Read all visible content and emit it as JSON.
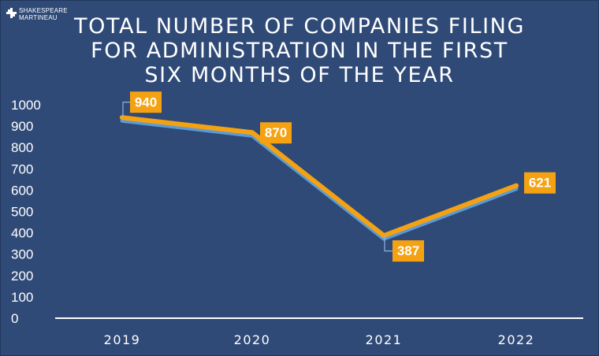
{
  "brand": {
    "line1": "SHAKESPEARE",
    "line2": "MARTINEAU",
    "icon": "plus-star-icon"
  },
  "colors": {
    "background": "#2f4a77",
    "line": "#f5a212",
    "line_shadow": "#5b9bd5",
    "label_box": "#f5a212",
    "text": "#ffffff"
  },
  "chart_data": {
    "type": "line",
    "title": [
      "TOTAL NUMBER OF COMPANIES FILING",
      "FOR ADMINISTRATION IN THE FIRST",
      "SIX MONTHS OF THE YEAR"
    ],
    "categories": [
      "2019",
      "2020",
      "2021",
      "2022"
    ],
    "values": [
      940,
      870,
      387,
      621
    ],
    "data_labels": [
      "940",
      "870",
      "387",
      "621"
    ],
    "ylim": [
      0,
      1000
    ],
    "yticks": [
      0,
      100,
      200,
      300,
      400,
      500,
      600,
      700,
      800,
      900,
      1000
    ],
    "xlabel": "",
    "ylabel": "",
    "grid": false,
    "legend": "none"
  }
}
